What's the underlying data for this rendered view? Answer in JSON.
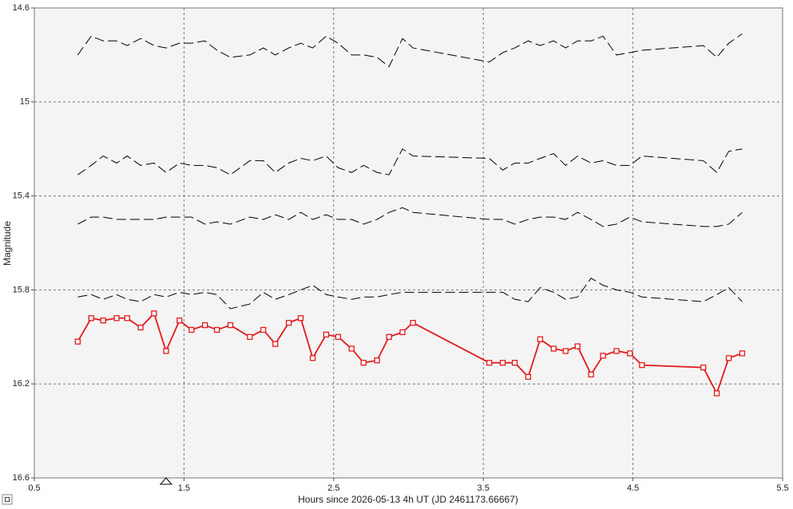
{
  "chart_data": {
    "type": "line",
    "x_label": "Hours since 2026-05-13 4h UT (JD 2461173.66667)",
    "y_label": "Magnitude",
    "x": [
      0.79,
      0.88,
      0.96,
      1.05,
      1.12,
      1.21,
      1.3,
      1.38,
      1.47,
      1.55,
      1.64,
      1.72,
      1.81,
      1.94,
      2.03,
      2.11,
      2.2,
      2.28,
      2.36,
      2.45,
      2.53,
      2.62,
      2.7,
      2.79,
      2.87,
      2.96,
      3.03,
      3.54,
      3.63,
      3.71,
      3.8,
      3.88,
      3.97,
      4.05,
      4.13,
      4.22,
      4.3,
      4.39,
      4.48,
      4.56,
      4.97,
      5.06,
      5.14,
      5.23
    ],
    "series": [
      {
        "color": "#000000",
        "dashed": true,
        "markers": false,
        "values": [
          14.8,
          14.72,
          14.74,
          14.74,
          14.76,
          14.73,
          14.76,
          14.77,
          14.75,
          14.75,
          14.74,
          14.78,
          14.81,
          14.8,
          14.77,
          14.8,
          14.77,
          14.75,
          14.77,
          14.72,
          14.75,
          14.8,
          14.8,
          14.81,
          14.85,
          14.73,
          14.77,
          14.83,
          14.79,
          14.77,
          14.74,
          14.76,
          14.74,
          14.77,
          14.74,
          14.74,
          14.72,
          14.8,
          14.79,
          14.78,
          14.76,
          14.81,
          14.75,
          14.71
        ]
      },
      {
        "color": "#000000",
        "dashed": true,
        "markers": false,
        "values": [
          15.31,
          15.27,
          15.23,
          15.26,
          15.23,
          15.27,
          15.26,
          15.3,
          15.26,
          15.27,
          15.27,
          15.28,
          15.31,
          15.25,
          15.25,
          15.3,
          15.26,
          15.24,
          15.25,
          15.23,
          15.28,
          15.3,
          15.27,
          15.3,
          15.31,
          15.2,
          15.23,
          15.24,
          15.29,
          15.26,
          15.26,
          15.24,
          15.22,
          15.27,
          15.23,
          15.26,
          15.25,
          15.27,
          15.27,
          15.23,
          15.25,
          15.3,
          15.21,
          15.2
        ]
      },
      {
        "color": "#000000",
        "dashed": true,
        "markers": false,
        "values": [
          15.52,
          15.49,
          15.49,
          15.5,
          15.5,
          15.5,
          15.5,
          15.49,
          15.49,
          15.49,
          15.52,
          15.51,
          15.52,
          15.49,
          15.5,
          15.48,
          15.5,
          15.47,
          15.5,
          15.48,
          15.5,
          15.5,
          15.52,
          15.5,
          15.47,
          15.45,
          15.47,
          15.5,
          15.5,
          15.52,
          15.5,
          15.49,
          15.49,
          15.5,
          15.47,
          15.5,
          15.53,
          15.52,
          15.49,
          15.51,
          15.53,
          15.53,
          15.52,
          15.47
        ]
      },
      {
        "color": "#000000",
        "dashed": true,
        "markers": false,
        "values": [
          15.83,
          15.82,
          15.84,
          15.82,
          15.84,
          15.85,
          15.82,
          15.83,
          15.81,
          15.82,
          15.81,
          15.82,
          15.88,
          15.86,
          15.81,
          15.84,
          15.82,
          15.8,
          15.78,
          15.82,
          15.83,
          15.84,
          15.83,
          15.83,
          15.82,
          15.81,
          15.81,
          15.81,
          15.81,
          15.84,
          15.85,
          15.79,
          15.81,
          15.84,
          15.83,
          15.75,
          15.78,
          15.8,
          15.81,
          15.83,
          15.85,
          15.82,
          15.79,
          15.85
        ]
      },
      {
        "color": "#e31a1c",
        "dashed": false,
        "markers": true,
        "values": [
          16.02,
          15.92,
          15.93,
          15.92,
          15.92,
          15.96,
          15.9,
          16.06,
          15.93,
          15.97,
          15.95,
          15.97,
          15.95,
          16.0,
          15.97,
          16.03,
          15.94,
          15.92,
          16.09,
          15.99,
          16.0,
          16.05,
          16.11,
          16.1,
          16.0,
          15.98,
          15.94,
          16.11,
          16.11,
          16.11,
          16.17,
          16.01,
          16.05,
          16.06,
          16.04,
          16.16,
          16.08,
          16.06,
          16.07,
          16.12,
          16.13,
          16.24,
          16.09,
          16.07
        ]
      }
    ],
    "x_marker": 1.38,
    "xlim": [
      0.5,
      5.5
    ],
    "xticks": [
      0.5,
      1.5,
      2.5,
      3.5,
      4.5,
      5.5
    ],
    "ylim": [
      14.6,
      16.6
    ],
    "yticks": [
      14.6,
      15,
      15.4,
      15.8,
      16.2,
      16.6
    ],
    "y_inverted": true,
    "grid": true
  }
}
